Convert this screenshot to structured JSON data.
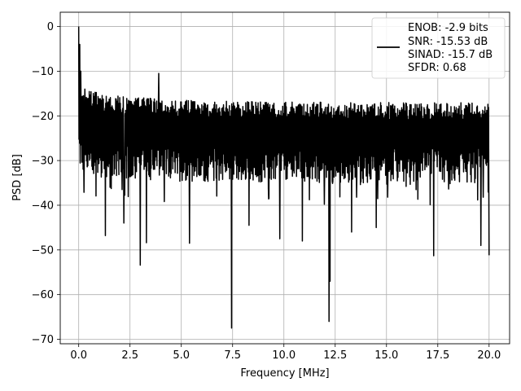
{
  "chart_data": {
    "type": "line",
    "title": "",
    "xlabel": "Frequency [MHz]",
    "ylabel": "PSD [dB]",
    "xlim": [
      -0.9,
      21.0
    ],
    "ylim": [
      -71.0,
      3.2
    ],
    "xticks": [
      0.0,
      2.5,
      5.0,
      7.5,
      10.0,
      12.5,
      15.0,
      17.5,
      20.0
    ],
    "xtick_labels": [
      "0.0",
      "2.5",
      "5.0",
      "7.5",
      "10.0",
      "12.5",
      "15.0",
      "17.5",
      "20.0"
    ],
    "yticks": [
      0,
      -10,
      -20,
      -30,
      -40,
      -50,
      -60,
      -70
    ],
    "ytick_labels": [
      "0",
      "−10",
      "−20",
      "−30",
      "−40",
      "−50",
      "−60",
      "−70"
    ],
    "grid": true,
    "legend_position": "top-right",
    "series": [
      {
        "color": "#000000",
        "x_range": [
          0.0,
          20.0
        ],
        "typical_band": {
          "upper": -17,
          "lower": -35,
          "center": -25
        },
        "notable_points": [
          {
            "x": 0.0,
            "y": 0.0
          },
          {
            "x": 0.05,
            "y": -4.0
          },
          {
            "x": 0.1,
            "y": -10.0
          },
          {
            "x": 0.3,
            "y": -14.0
          },
          {
            "x": 1.3,
            "y": -46.8
          },
          {
            "x": 2.2,
            "y": -44.0
          },
          {
            "x": 3.0,
            "y": -53.4
          },
          {
            "x": 3.3,
            "y": -48.4
          },
          {
            "x": 3.9,
            "y": -10.5
          },
          {
            "x": 5.4,
            "y": -48.5
          },
          {
            "x": 7.45,
            "y": -67.5
          },
          {
            "x": 8.3,
            "y": -44.5
          },
          {
            "x": 9.8,
            "y": -47.5
          },
          {
            "x": 10.9,
            "y": -48.0
          },
          {
            "x": 12.2,
            "y": -66.0
          },
          {
            "x": 12.25,
            "y": -57.0
          },
          {
            "x": 13.3,
            "y": -46.0
          },
          {
            "x": 14.5,
            "y": -45.0
          },
          {
            "x": 17.3,
            "y": -51.3
          },
          {
            "x": 19.6,
            "y": -49.0
          },
          {
            "x": 20.0,
            "y": -51.2
          }
        ]
      }
    ],
    "legend_lines": [
      "ENOB: -2.9 bits",
      "SNR: -15.53 dB",
      "SINAD: -15.7 dB",
      "SFDR: 0.68"
    ]
  }
}
